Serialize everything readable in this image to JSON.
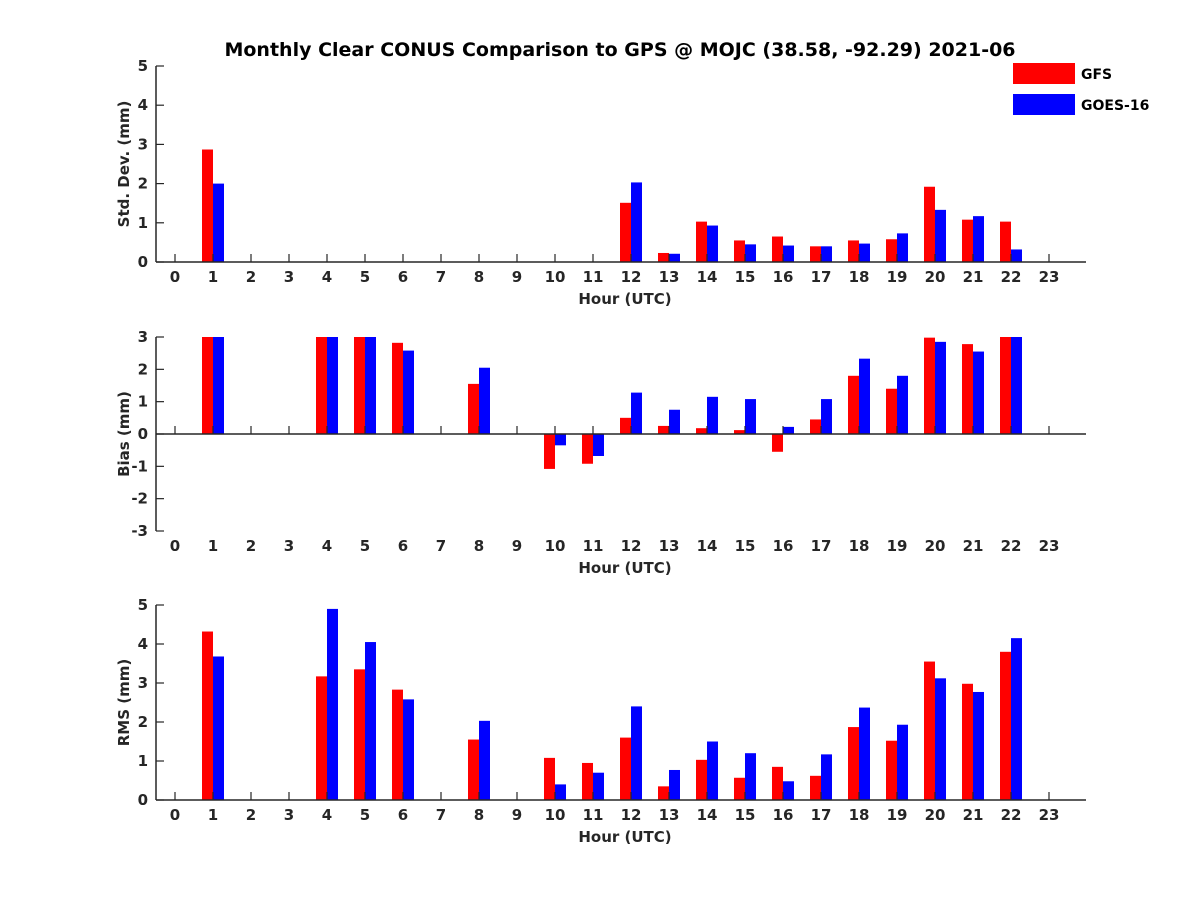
{
  "title": "Monthly Clear CONUS Comparison to GPS @ MOJC (38.58, -92.29) 2021-06",
  "legend": {
    "placement": "top-right",
    "items": [
      {
        "label": "GFS",
        "color": "#ff0000"
      },
      {
        "label": "GOES-16",
        "color": "#0000ff"
      }
    ]
  },
  "chart_data": [
    {
      "type": "bar",
      "ylabel": "Std. Dev. (mm)",
      "xlabel": "Hour (UTC)",
      "ylim": [
        0,
        5
      ],
      "yticks": [
        "0",
        "1",
        "2",
        "3",
        "4",
        "5"
      ],
      "categories": [
        "0",
        "1",
        "2",
        "3",
        "4",
        "5",
        "6",
        "7",
        "8",
        "9",
        "10",
        "11",
        "12",
        "13",
        "14",
        "15",
        "16",
        "17",
        "18",
        "19",
        "20",
        "21",
        "22",
        "23"
      ],
      "series": [
        {
          "name": "GFS",
          "color": "#ff0000",
          "values": [
            null,
            2.87,
            null,
            null,
            null,
            null,
            null,
            null,
            null,
            null,
            null,
            null,
            1.51,
            0.23,
            1.03,
            0.55,
            0.65,
            0.4,
            0.55,
            0.58,
            1.92,
            1.08,
            1.03,
            null
          ]
        },
        {
          "name": "GOES-16",
          "color": "#0000ff",
          "values": [
            null,
            2.0,
            null,
            null,
            null,
            null,
            null,
            null,
            null,
            null,
            null,
            null,
            2.03,
            0.21,
            0.93,
            0.45,
            0.42,
            0.4,
            0.47,
            0.73,
            1.33,
            1.17,
            0.32,
            null
          ]
        }
      ]
    },
    {
      "type": "bar",
      "ylabel": "Bias (mm)",
      "xlabel": "Hour (UTC)",
      "ylim": [
        -3,
        3
      ],
      "yticks": [
        "-3",
        "-2",
        "-1",
        "0",
        "1",
        "2",
        "3"
      ],
      "categories": [
        "0",
        "1",
        "2",
        "3",
        "4",
        "5",
        "6",
        "7",
        "8",
        "9",
        "10",
        "11",
        "12",
        "13",
        "14",
        "15",
        "16",
        "17",
        "18",
        "19",
        "20",
        "21",
        "22",
        "23"
      ],
      "series": [
        {
          "name": "GFS",
          "color": "#ff0000",
          "values": [
            null,
            3.0,
            null,
            null,
            3.0,
            3.0,
            2.82,
            null,
            1.55,
            null,
            -1.08,
            -0.92,
            0.5,
            0.25,
            0.18,
            0.12,
            -0.55,
            0.45,
            1.8,
            1.4,
            2.98,
            2.78,
            3.0,
            null
          ]
        },
        {
          "name": "GOES-16",
          "color": "#0000ff",
          "values": [
            null,
            3.0,
            null,
            null,
            3.0,
            3.0,
            2.58,
            null,
            2.05,
            null,
            -0.35,
            -0.68,
            1.28,
            0.75,
            1.15,
            1.08,
            0.22,
            1.08,
            2.33,
            1.8,
            2.85,
            2.55,
            3.0,
            null
          ]
        }
      ]
    },
    {
      "type": "bar",
      "ylabel": "RMS (mm)",
      "xlabel": "Hour (UTC)",
      "ylim": [
        0,
        5
      ],
      "yticks": [
        "0",
        "1",
        "2",
        "3",
        "4",
        "5"
      ],
      "categories": [
        "0",
        "1",
        "2",
        "3",
        "4",
        "5",
        "6",
        "7",
        "8",
        "9",
        "10",
        "11",
        "12",
        "13",
        "14",
        "15",
        "16",
        "17",
        "18",
        "19",
        "20",
        "21",
        "22",
        "23"
      ],
      "series": [
        {
          "name": "GFS",
          "color": "#ff0000",
          "values": [
            null,
            4.32,
            null,
            null,
            3.17,
            3.35,
            2.83,
            null,
            1.55,
            null,
            1.08,
            0.95,
            1.6,
            0.35,
            1.03,
            0.57,
            0.85,
            0.62,
            1.87,
            1.52,
            3.55,
            2.98,
            3.8,
            null
          ]
        },
        {
          "name": "GOES-16",
          "color": "#0000ff",
          "values": [
            null,
            3.68,
            null,
            null,
            4.9,
            4.05,
            2.58,
            null,
            2.03,
            null,
            0.4,
            0.7,
            2.4,
            0.77,
            1.5,
            1.2,
            0.48,
            1.17,
            2.37,
            1.93,
            3.12,
            2.77,
            4.15,
            null
          ]
        }
      ]
    }
  ]
}
